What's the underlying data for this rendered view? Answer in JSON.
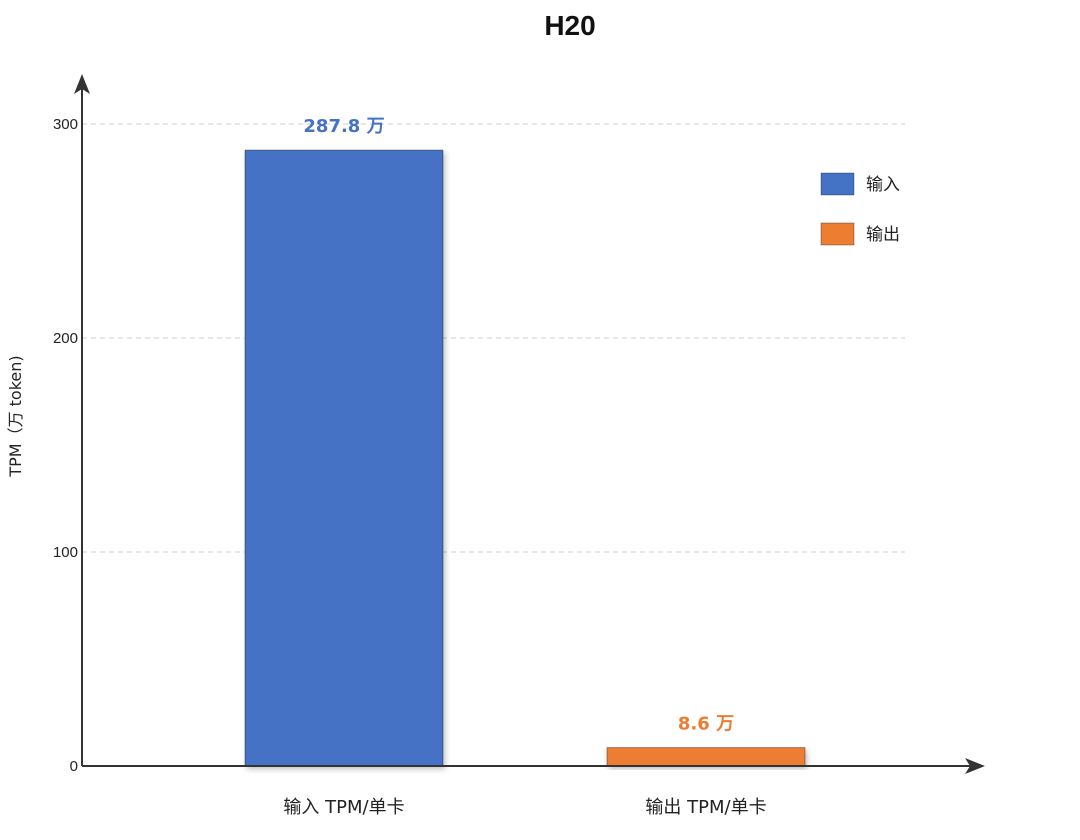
{
  "chart_data": {
    "type": "bar",
    "title": "H20",
    "ylabel": "TPM（万 token)",
    "xlabel": "",
    "ylim": [
      0,
      300
    ],
    "yticks": [
      0,
      100,
      200,
      300
    ],
    "grid": true,
    "legend_position": "top-right",
    "categories": [
      "输入 TPM/单卡",
      "输出 TPM/单卡"
    ],
    "values": [
      287.8,
      8.6
    ],
    "data_labels": [
      "287.8 万",
      "8.6 万"
    ],
    "colors": [
      "#4472c4",
      "#ed7d31"
    ],
    "label_colors": [
      "#4472c4",
      "#ed7d31"
    ],
    "legend": [
      "输入",
      "输出"
    ]
  }
}
